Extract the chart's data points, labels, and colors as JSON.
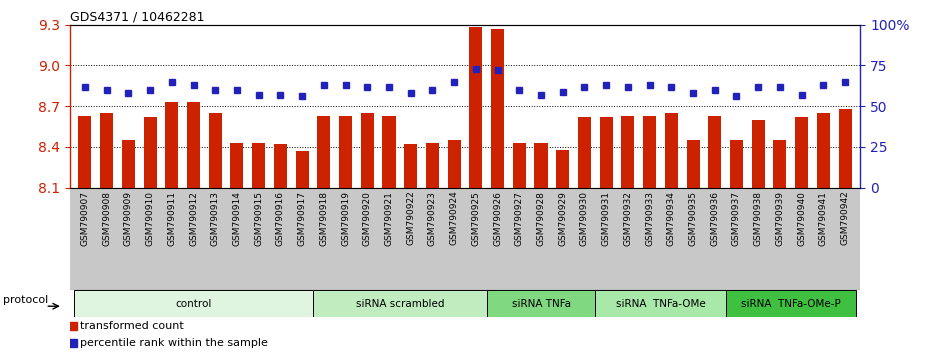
{
  "title": "GDS4371 / 10462281",
  "samples": [
    "GSM790907",
    "GSM790908",
    "GSM790909",
    "GSM790910",
    "GSM790911",
    "GSM790912",
    "GSM790913",
    "GSM790914",
    "GSM790915",
    "GSM790916",
    "GSM790917",
    "GSM790918",
    "GSM790919",
    "GSM790920",
    "GSM790921",
    "GSM790922",
    "GSM790923",
    "GSM790924",
    "GSM790925",
    "GSM790926",
    "GSM790927",
    "GSM790928",
    "GSM790929",
    "GSM790930",
    "GSM790931",
    "GSM790932",
    "GSM790933",
    "GSM790934",
    "GSM790935",
    "GSM790936",
    "GSM790937",
    "GSM790938",
    "GSM790939",
    "GSM790940",
    "GSM790941",
    "GSM790942"
  ],
  "red_values": [
    8.63,
    8.65,
    8.45,
    8.62,
    8.73,
    8.73,
    8.65,
    8.43,
    8.43,
    8.42,
    8.37,
    8.63,
    8.63,
    8.65,
    8.63,
    8.42,
    8.43,
    8.45,
    9.28,
    9.27,
    8.43,
    8.43,
    8.38,
    8.62,
    8.62,
    8.63,
    8.63,
    8.65,
    8.45,
    8.63,
    8.45,
    8.6,
    8.45,
    8.62,
    8.65,
    8.68
  ],
  "blue_values": [
    62,
    60,
    58,
    60,
    65,
    63,
    60,
    60,
    57,
    57,
    56,
    63,
    63,
    62,
    62,
    58,
    60,
    65,
    73,
    72,
    60,
    57,
    59,
    62,
    63,
    62,
    63,
    62,
    58,
    60,
    56,
    62,
    62,
    57,
    63,
    65
  ],
  "groups": [
    {
      "label": "control",
      "start": 0,
      "end": 11,
      "color": "#e0f5e0"
    },
    {
      "label": "siRNA scrambled",
      "start": 11,
      "end": 19,
      "color": "#c0ecc0"
    },
    {
      "label": "siRNA TNFa",
      "start": 19,
      "end": 24,
      "color": "#80d880"
    },
    {
      "label": "siRNA  TNFa-OMe",
      "start": 24,
      "end": 30,
      "color": "#a8e8a8"
    },
    {
      "label": "siRNA  TNFa-OMe-P",
      "start": 30,
      "end": 36,
      "color": "#40c040"
    }
  ],
  "ylim_left": [
    8.1,
    9.3
  ],
  "ylim_right": [
    0,
    100
  ],
  "yticks_left": [
    8.1,
    8.4,
    8.7,
    9.0,
    9.3
  ],
  "yticks_right": [
    0,
    25,
    50,
    75,
    100
  ],
  "ytick_right_labels": [
    "0",
    "25",
    "50",
    "75",
    "100%"
  ],
  "grid_lines": [
    8.4,
    8.7,
    9.0
  ],
  "bar_color": "#cc2200",
  "dot_color": "#2222bb",
  "bar_bottom": 8.1,
  "bar_width": 0.6,
  "dot_size": 4.5,
  "xlabel_fontsize": 6.5,
  "bar_label_area_color": "#c8c8c8",
  "protocol_label": "protocol"
}
